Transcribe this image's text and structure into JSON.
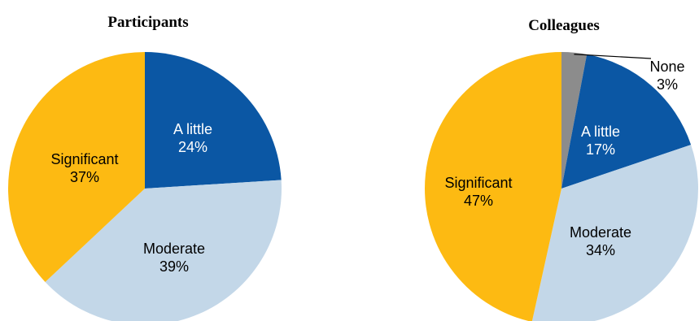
{
  "chart_data": [
    {
      "type": "pie",
      "title": "Participants",
      "series": [
        {
          "name": "A little",
          "value": 24,
          "pct": "24%",
          "color": "#0B57A4",
          "label_color": "#ffffff"
        },
        {
          "name": "Moderate",
          "value": 39,
          "pct": "39%",
          "color": "#C3D7E8",
          "label_color": "#000000"
        },
        {
          "name": "Significant",
          "value": 37,
          "pct": "37%",
          "color": "#FDBA12",
          "label_color": "#000000"
        }
      ],
      "start": "12 o'clock",
      "direction": "clockwise",
      "legend": "none"
    },
    {
      "type": "pie",
      "title": "Colleagues",
      "series": [
        {
          "name": "None",
          "value": 3,
          "pct": "3%",
          "color": "#8C8C8C",
          "label_color": "#000000"
        },
        {
          "name": "A little",
          "value": 17,
          "pct": "17%",
          "color": "#0B57A4",
          "label_color": "#ffffff"
        },
        {
          "name": "Moderate",
          "value": 34,
          "pct": "34%",
          "color": "#C3D7E8",
          "label_color": "#000000"
        },
        {
          "name": "Significant",
          "value": 47,
          "pct": "47%",
          "color": "#FDBA12",
          "label_color": "#000000"
        }
      ],
      "start": "12 o'clock",
      "direction": "clockwise",
      "legend": "none"
    }
  ]
}
